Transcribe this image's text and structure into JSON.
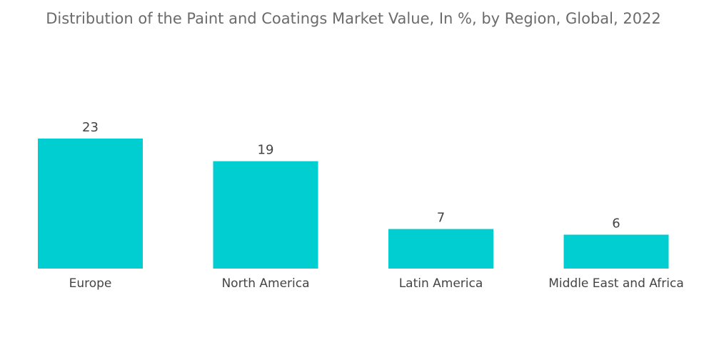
{
  "chart_data": {
    "type": "bar",
    "title": "Distribution of the Paint and Coatings Market Value, In %, by Region, Global, 2022",
    "categories": [
      "Europe",
      "North America",
      "Latin America",
      "Middle East and Africa"
    ],
    "values": [
      23,
      19,
      7,
      6
    ],
    "xlabel": "",
    "ylabel": "",
    "ylim": [
      0,
      23
    ],
    "grid": false,
    "legend": "none",
    "bar_color": "#00CED1"
  }
}
